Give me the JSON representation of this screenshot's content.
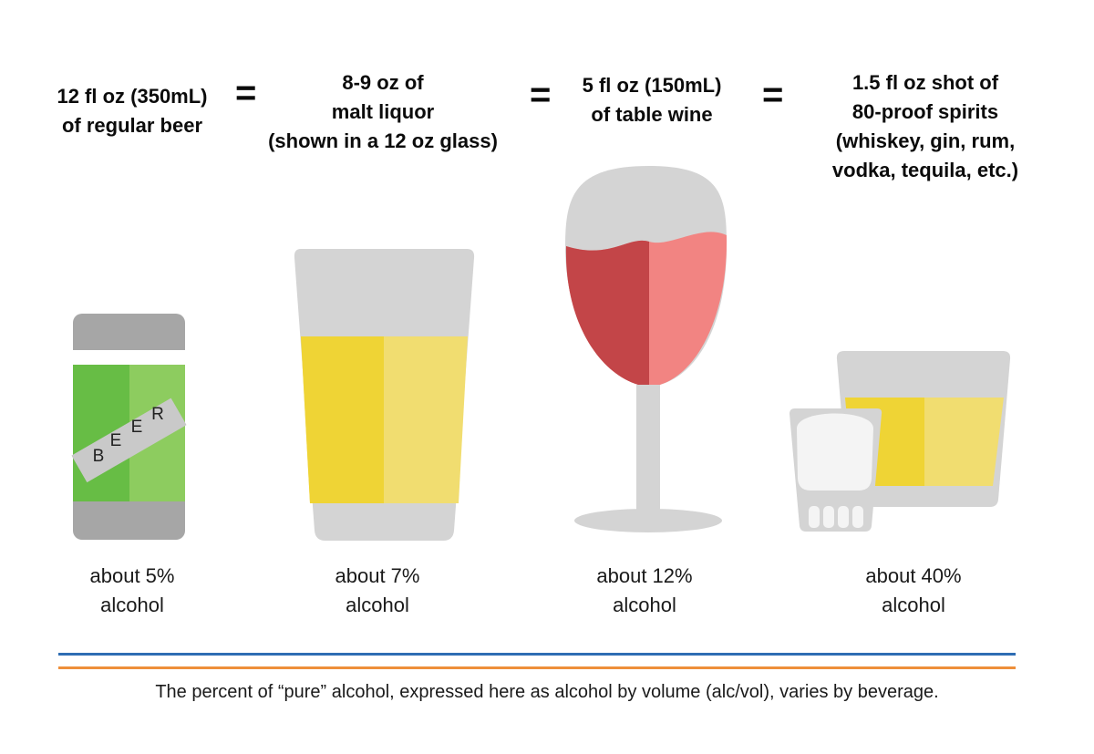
{
  "drinks": [
    {
      "title": "12 fl oz (350mL)\nof regular beer",
      "percent": "about 5%",
      "alcohol": "alcohol"
    },
    {
      "title": "8-9 oz of\nmalt liquor\n(shown in a 12 oz glass)",
      "percent": "about 7%",
      "alcohol": "alcohol"
    },
    {
      "title": "5 fl oz (150mL)\nof table wine",
      "percent": "about 12%",
      "alcohol": "alcohol"
    },
    {
      "title": "1.5 fl oz shot of\n80-proof spirits\n(whiskey, gin, rum,\nvodka, tequila, etc.)",
      "percent": "about 40%",
      "alcohol": "alcohol"
    }
  ],
  "equals": "=",
  "can_label": {
    "letters": [
      "B",
      "E",
      "E",
      "R"
    ]
  },
  "caption": "The percent of “pure” alcohol, expressed here as alcohol by volume (alc/vol), varies by beverage.",
  "colors": {
    "gray": "#d4d4d4",
    "can_gray": "#a6a6a6",
    "green_dark": "#67bd45",
    "green_light": "#8dcc5f",
    "yellow_dark": "#efd435",
    "yellow_light": "#f1dd70",
    "wine_dark": "#c34548",
    "wine_light": "#f28482",
    "rule_blue": "#2e6db3",
    "rule_orange": "#ee8f3a"
  }
}
